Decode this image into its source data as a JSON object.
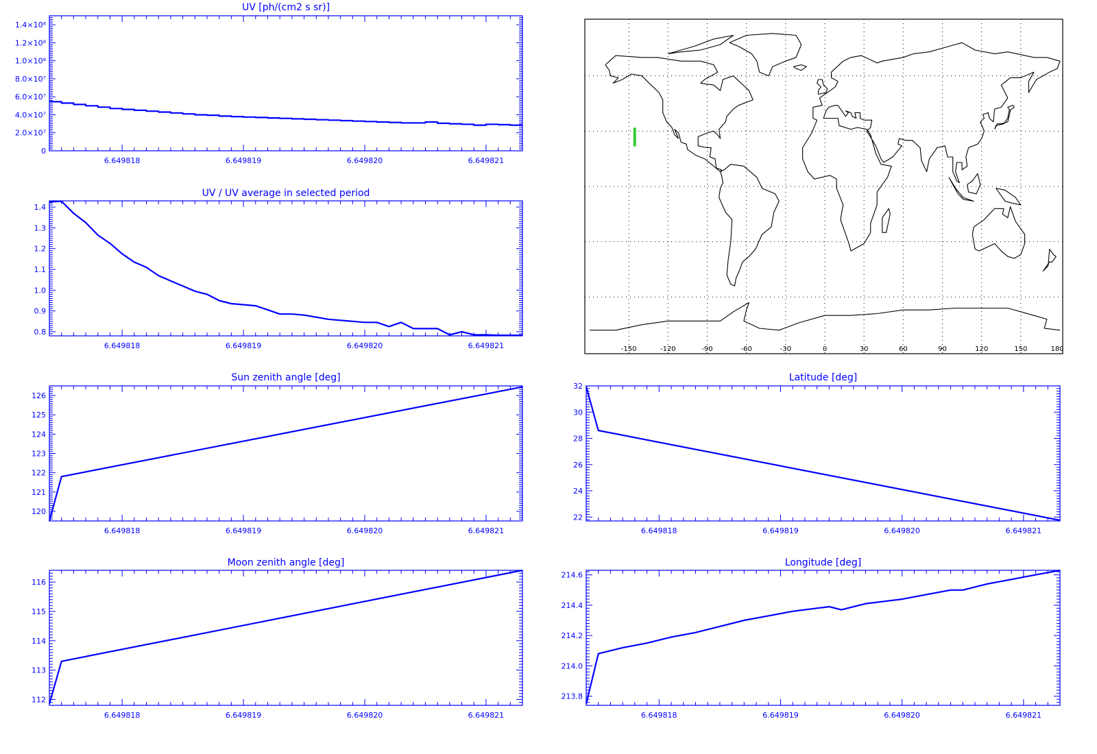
{
  "chart_data": [
    {
      "id": "uv",
      "type": "line",
      "style": "step",
      "title": "UV [ph/(cm2 s sr)]",
      "xlabel": "",
      "ylabel": "",
      "xlim": [
        6.6498174,
        6.6498213
      ],
      "ylim": [
        0,
        150000000.0
      ],
      "x_ticks": [
        {
          "value": 6.649818,
          "label": "6.649818"
        },
        {
          "value": 6.649819,
          "label": "6.649819"
        },
        {
          "value": 6.64982,
          "label": "6.649820"
        },
        {
          "value": 6.649821,
          "label": "6.649821"
        }
      ],
      "y_ticks": [
        {
          "value": 0,
          "label": "0"
        },
        {
          "value": 20000000.0,
          "label": "2.0×10⁷"
        },
        {
          "value": 40000000.0,
          "label": "4.0×10⁷"
        },
        {
          "value": 60000000.0,
          "label": "6.0×10⁷"
        },
        {
          "value": 80000000.0,
          "label": "8.0×10⁷"
        },
        {
          "value": 100000000.0,
          "label": "1.0×10⁸"
        },
        {
          "value": 120000000.0,
          "label": "1.2×10⁸"
        },
        {
          "value": 140000000.0,
          "label": "1.4×10⁸"
        }
      ],
      "x": [
        6.6498174,
        6.6498175,
        6.6498176,
        6.6498177,
        6.6498178,
        6.6498179,
        6.649818,
        6.6498181,
        6.6498182,
        6.6498183,
        6.6498184,
        6.6498185,
        6.6498186,
        6.6498187,
        6.6498188,
        6.6498189,
        6.649819,
        6.6498191,
        6.6498192,
        6.6498193,
        6.6498194,
        6.6498195,
        6.6498196,
        6.6498197,
        6.6498198,
        6.6498199,
        6.64982,
        6.6498201,
        6.6498202,
        6.6498203,
        6.6498204,
        6.6498205,
        6.6498206,
        6.6498207,
        6.6498208,
        6.6498209,
        6.649821,
        6.6498211,
        6.6498212,
        6.6498213
      ],
      "y": [
        54500000.0,
        53000000.0,
        51500000.0,
        50000000.0,
        48500000.0,
        47000000.0,
        46000000.0,
        45000000.0,
        44000000.0,
        43000000.0,
        42000000.0,
        41000000.0,
        40000000.0,
        39500000.0,
        38500000.0,
        38000000.0,
        37500000.0,
        37000000.0,
        36500000.0,
        36000000.0,
        35500000.0,
        35000000.0,
        34500000.0,
        34000000.0,
        33500000.0,
        33000000.0,
        32500000.0,
        32000000.0,
        31500000.0,
        31000000.0,
        31000000.0,
        32000000.0,
        30500000.0,
        30000000.0,
        29500000.0,
        28500000.0,
        29500000.0,
        29000000.0,
        28500000.0,
        28500000.0
      ]
    },
    {
      "id": "uv_ratio",
      "type": "line",
      "title": "UV / UV average in selected period",
      "xlabel": "",
      "ylabel": "",
      "xlim": [
        6.6498174,
        6.6498213
      ],
      "ylim": [
        0.78,
        1.43
      ],
      "x_ticks": [
        {
          "value": 6.649818,
          "label": "6.649818"
        },
        {
          "value": 6.649819,
          "label": "6.649819"
        },
        {
          "value": 6.64982,
          "label": "6.649820"
        },
        {
          "value": 6.649821,
          "label": "6.649821"
        }
      ],
      "y_ticks": [
        {
          "value": 0.8,
          "label": "0.8"
        },
        {
          "value": 0.9,
          "label": "0.9"
        },
        {
          "value": 1.0,
          "label": "1.0"
        },
        {
          "value": 1.1,
          "label": "1.1"
        },
        {
          "value": 1.2,
          "label": "1.2"
        },
        {
          "value": 1.3,
          "label": "1.3"
        },
        {
          "value": 1.4,
          "label": "1.4"
        }
      ],
      "x": [
        6.6498174,
        6.6498175,
        6.6498176,
        6.6498177,
        6.6498178,
        6.6498179,
        6.649818,
        6.6498181,
        6.6498182,
        6.6498183,
        6.6498184,
        6.6498185,
        6.6498186,
        6.6498187,
        6.6498188,
        6.6498189,
        6.649819,
        6.6498191,
        6.6498192,
        6.6498193,
        6.6498194,
        6.6498195,
        6.6498196,
        6.6498197,
        6.6498198,
        6.6498199,
        6.64982,
        6.6498201,
        6.6498202,
        6.6498203,
        6.6498204,
        6.6498205,
        6.6498206,
        6.6498207,
        6.6498208,
        6.6498209,
        6.649821,
        6.6498211,
        6.6498212,
        6.6498213
      ],
      "y": [
        1.425,
        1.428,
        1.37,
        1.325,
        1.265,
        1.225,
        1.175,
        1.135,
        1.11,
        1.07,
        1.045,
        1.02,
        0.995,
        0.98,
        0.95,
        0.935,
        0.93,
        0.925,
        0.905,
        0.885,
        0.885,
        0.88,
        0.87,
        0.86,
        0.855,
        0.85,
        0.845,
        0.845,
        0.825,
        0.845,
        0.815,
        0.815,
        0.815,
        0.785,
        0.8,
        0.785,
        0.785,
        0.783,
        0.783,
        0.783
      ]
    },
    {
      "id": "sun",
      "type": "line",
      "title": "Sun zenith angle [deg]",
      "xlabel": "",
      "ylabel": "",
      "xlim": [
        6.6498174,
        6.6498213
      ],
      "ylim": [
        119.5,
        126.5
      ],
      "x_ticks": [
        {
          "value": 6.649818,
          "label": "6.649818"
        },
        {
          "value": 6.649819,
          "label": "6.649819"
        },
        {
          "value": 6.64982,
          "label": "6.649820"
        },
        {
          "value": 6.649821,
          "label": "6.649821"
        }
      ],
      "y_ticks": [
        {
          "value": 120,
          "label": "120"
        },
        {
          "value": 121,
          "label": "121"
        },
        {
          "value": 122,
          "label": "122"
        },
        {
          "value": 123,
          "label": "123"
        },
        {
          "value": 124,
          "label": "124"
        },
        {
          "value": 125,
          "label": "125"
        },
        {
          "value": 126,
          "label": "126"
        }
      ],
      "x": [
        6.6498174,
        6.6498175,
        6.6498213
      ],
      "y": [
        119.5,
        121.8,
        126.45
      ]
    },
    {
      "id": "lat",
      "type": "line",
      "title": "Latitude [deg]",
      "xlabel": "",
      "ylabel": "",
      "xlim": [
        6.6498174,
        6.6498213
      ],
      "ylim": [
        21.7,
        32.0
      ],
      "x_ticks": [
        {
          "value": 6.649818,
          "label": "6.649818"
        },
        {
          "value": 6.649819,
          "label": "6.649819"
        },
        {
          "value": 6.64982,
          "label": "6.649820"
        },
        {
          "value": 6.649821,
          "label": "6.649821"
        }
      ],
      "y_ticks": [
        {
          "value": 22,
          "label": "22"
        },
        {
          "value": 24,
          "label": "24"
        },
        {
          "value": 26,
          "label": "26"
        },
        {
          "value": 28,
          "label": "28"
        },
        {
          "value": 30,
          "label": "30"
        },
        {
          "value": 32,
          "label": "32"
        }
      ],
      "x": [
        6.6498174,
        6.6498175,
        6.6498213
      ],
      "y": [
        31.95,
        28.6,
        21.75
      ]
    },
    {
      "id": "moon",
      "type": "line",
      "title": "Moon zenith angle [deg]",
      "xlabel": "",
      "ylabel": "",
      "xlim": [
        6.6498174,
        6.6498213
      ],
      "ylim": [
        111.8,
        116.4
      ],
      "x_ticks": [
        {
          "value": 6.649818,
          "label": "6.649818"
        },
        {
          "value": 6.649819,
          "label": "6.649819"
        },
        {
          "value": 6.64982,
          "label": "6.649820"
        },
        {
          "value": 6.649821,
          "label": "6.649821"
        }
      ],
      "y_ticks": [
        {
          "value": 112,
          "label": "112"
        },
        {
          "value": 113,
          "label": "113"
        },
        {
          "value": 114,
          "label": "114"
        },
        {
          "value": 115,
          "label": "115"
        },
        {
          "value": 116,
          "label": "116"
        }
      ],
      "x": [
        6.6498174,
        6.6498175,
        6.6498213
      ],
      "y": [
        111.85,
        113.3,
        116.4
      ]
    },
    {
      "id": "lon",
      "type": "line",
      "title": "Longitude [deg]",
      "xlabel": "",
      "ylabel": "",
      "xlim": [
        6.6498174,
        6.6498213
      ],
      "ylim": [
        213.74,
        214.63
      ],
      "x_ticks": [
        {
          "value": 6.649818,
          "label": "6.649818"
        },
        {
          "value": 6.649819,
          "label": "6.649819"
        },
        {
          "value": 6.64982,
          "label": "6.649820"
        },
        {
          "value": 6.649821,
          "label": "6.649821"
        }
      ],
      "y_ticks": [
        {
          "value": 213.8,
          "label": "213.8"
        },
        {
          "value": 214.0,
          "label": "214.0"
        },
        {
          "value": 214.2,
          "label": "214.2"
        },
        {
          "value": 214.4,
          "label": "214.4"
        },
        {
          "value": 214.6,
          "label": "214.6"
        }
      ],
      "x": [
        6.6498174,
        6.6498175,
        6.6498177,
        6.6498179,
        6.6498181,
        6.6498183,
        6.6498185,
        6.6498187,
        6.6498189,
        6.6498191,
        6.6498193,
        6.6498194,
        6.6498195,
        6.6498197,
        6.6498199,
        6.64982,
        6.6498202,
        6.6498204,
        6.6498205,
        6.6498207,
        6.6498209,
        6.6498211,
        6.6498213
      ],
      "y": [
        213.75,
        214.08,
        214.12,
        214.15,
        214.19,
        214.22,
        214.26,
        214.3,
        214.33,
        214.36,
        214.38,
        214.39,
        214.37,
        214.41,
        214.43,
        214.44,
        214.47,
        214.5,
        214.5,
        214.54,
        214.57,
        214.6,
        214.63
      ]
    }
  ],
  "map": {
    "type": "map",
    "projection": "equirectangular",
    "grid": true,
    "xlim": [
      -180,
      180
    ],
    "ylim": [
      -90,
      90
    ],
    "x_ticks": [
      "-150",
      "-120",
      "-90",
      "-60",
      "-30",
      "0",
      "30",
      "60",
      "90",
      "120",
      "150",
      "180"
    ],
    "colors": {
      "coast": "#000000",
      "track": "#33cc33",
      "frame": "#000000"
    },
    "track": {
      "lon": [
        -145.5,
        -145.5
      ],
      "lat": [
        31.9,
        21.8
      ]
    }
  },
  "colors": {
    "plot": "#0000ff",
    "background": "#ffffff"
  }
}
